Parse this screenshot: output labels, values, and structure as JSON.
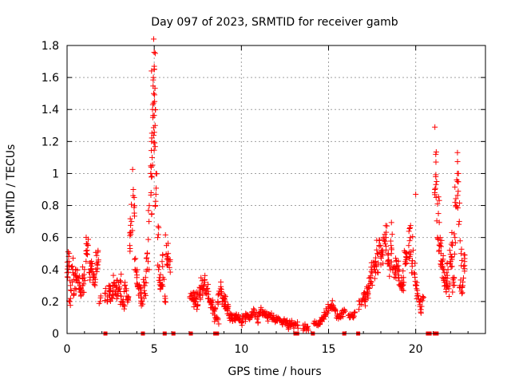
{
  "chart_data": {
    "type": "scatter",
    "title": "Day 097 of 2023, SRMTID for receiver gamb",
    "xlabel": "GPS time / hours",
    "ylabel": "SRMTID / TECUs",
    "xlim": [
      0,
      24
    ],
    "ylim": [
      0,
      1.8
    ],
    "xticks": [
      0,
      5,
      10,
      15,
      20
    ],
    "xtick_labels": [
      "0",
      "5",
      "10",
      "15",
      "20"
    ],
    "yticks": [
      0,
      0.2,
      0.4,
      0.6,
      0.8,
      1,
      1.2,
      1.4,
      1.6,
      1.8
    ],
    "ytick_labels": [
      "0",
      "0.2",
      "0.4",
      "0.6",
      "0.8",
      "1",
      "1.2",
      "1.4",
      "1.6",
      "1.8"
    ],
    "grid": true,
    "marker": "plus",
    "color": "#ff0000",
    "series": [
      {
        "name": "SRMTID",
        "x": [
          0.0,
          0.1,
          0.2,
          0.3,
          0.4,
          0.5,
          0.6,
          0.7,
          0.8,
          0.9,
          1.0,
          1.1,
          1.2,
          1.3,
          1.4,
          1.5,
          1.6,
          1.7,
          1.8,
          1.9,
          2.2,
          2.3,
          2.4,
          2.5,
          2.6,
          2.7,
          2.8,
          2.9,
          3.0,
          3.1,
          3.2,
          3.3,
          3.4,
          3.5,
          3.6,
          3.7,
          3.8,
          3.9,
          4.0,
          4.1,
          4.2,
          4.3,
          4.4,
          4.5,
          4.6,
          4.7,
          4.8,
          4.85,
          4.9,
          4.95,
          5.0,
          5.05,
          5.1,
          5.2,
          5.3,
          5.4,
          5.5,
          5.6,
          5.7,
          5.8,
          5.9,
          7.1,
          7.2,
          7.3,
          7.4,
          7.5,
          7.6,
          7.7,
          7.8,
          7.9,
          8.0,
          8.1,
          8.2,
          8.3,
          8.4,
          8.5,
          8.6,
          8.7,
          8.8,
          8.9,
          9.0,
          9.1,
          9.2,
          9.3,
          9.4,
          9.5,
          9.6,
          9.7,
          9.8,
          9.9,
          10.0,
          10.1,
          10.2,
          10.3,
          10.4,
          10.5,
          10.6,
          10.7,
          10.8,
          10.9,
          11.0,
          11.1,
          11.2,
          11.3,
          11.4,
          11.5,
          11.6,
          11.7,
          11.8,
          11.9,
          12.0,
          12.1,
          12.2,
          12.3,
          12.4,
          12.5,
          12.6,
          12.7,
          12.8,
          12.9,
          13.0,
          13.1,
          13.2,
          13.6,
          13.7,
          13.8,
          14.2,
          14.3,
          14.4,
          14.5,
          14.6,
          14.7,
          14.8,
          14.9,
          15.0,
          15.1,
          15.2,
          15.3,
          15.4,
          15.5,
          15.6,
          15.7,
          15.8,
          15.9,
          16.2,
          16.3,
          16.4,
          16.5,
          16.8,
          16.9,
          17.0,
          17.1,
          17.2,
          17.3,
          17.4,
          17.5,
          17.6,
          17.7,
          17.8,
          17.9,
          18.0,
          18.1,
          18.2,
          18.3,
          18.4,
          18.5,
          18.6,
          18.7,
          18.8,
          18.9,
          19.0,
          19.1,
          19.2,
          19.3,
          19.4,
          19.5,
          19.6,
          19.7,
          19.8,
          19.9,
          20.0,
          20.1,
          20.2,
          20.3,
          20.4,
          21.1,
          21.2,
          21.3,
          21.4,
          21.5,
          21.6,
          21.7,
          21.8,
          21.9,
          22.0,
          22.1,
          22.2,
          22.3,
          22.4,
          22.5,
          22.6,
          22.7,
          22.8,
          0.05,
          0.15,
          0.35,
          0.55,
          0.75,
          0.95,
          1.15,
          1.35,
          1.55,
          1.75,
          2.45,
          2.65,
          2.85,
          3.05,
          3.25,
          3.45,
          3.65,
          3.85,
          4.05,
          4.25,
          4.45,
          4.65,
          4.82,
          4.88,
          4.92,
          4.97,
          5.02,
          5.07,
          5.25,
          5.35,
          5.45,
          5.75,
          7.25,
          7.45,
          7.65,
          7.85,
          8.05,
          8.25,
          8.45,
          8.65,
          8.85,
          9.05,
          9.25,
          9.45,
          9.65,
          17.05,
          17.25,
          17.45,
          17.65,
          17.85,
          18.05,
          18.25,
          18.45,
          18.65,
          18.85,
          19.05,
          19.25,
          19.45,
          19.65,
          19.85,
          20.05,
          20.25,
          21.15,
          21.25,
          21.35,
          21.45,
          21.55,
          21.65,
          21.75,
          21.85,
          21.95,
          22.05,
          22.15,
          22.25,
          22.35,
          22.45,
          22.55,
          22.65,
          22.75
        ],
        "y": [
          0.38,
          0.45,
          0.3,
          0.42,
          0.25,
          0.4,
          0.35,
          0.32,
          0.28,
          0.36,
          0.4,
          0.5,
          0.55,
          0.38,
          0.42,
          0.35,
          0.3,
          0.44,
          0.46,
          0.2,
          0.25,
          0.2,
          0.3,
          0.28,
          0.22,
          0.32,
          0.3,
          0.25,
          0.28,
          0.2,
          0.18,
          0.3,
          0.28,
          0.22,
          0.55,
          0.7,
          0.9,
          0.4,
          0.35,
          0.28,
          0.25,
          0.2,
          0.3,
          0.35,
          0.5,
          0.7,
          1.0,
          1.2,
          1.4,
          1.6,
          1.65,
          1.3,
          1.0,
          0.6,
          0.35,
          0.3,
          0.35,
          0.2,
          0.55,
          0.5,
          0.45,
          0.25,
          0.22,
          0.24,
          0.2,
          0.18,
          0.25,
          0.3,
          0.28,
          0.32,
          0.25,
          0.22,
          0.2,
          0.18,
          0.15,
          0.1,
          0.1,
          0.25,
          0.28,
          0.22,
          0.2,
          0.18,
          0.15,
          0.12,
          0.1,
          0.08,
          0.1,
          0.12,
          0.1,
          0.08,
          0.07,
          0.09,
          0.1,
          0.12,
          0.11,
          0.1,
          0.12,
          0.13,
          0.11,
          0.09,
          0.12,
          0.14,
          0.12,
          0.13,
          0.11,
          0.1,
          0.12,
          0.11,
          0.1,
          0.09,
          0.08,
          0.1,
          0.09,
          0.07,
          0.08,
          0.06,
          0.07,
          0.05,
          0.06,
          0.07,
          0.05,
          0.06,
          0.05,
          0.03,
          0.04,
          0.03,
          0.06,
          0.07,
          0.05,
          0.08,
          0.1,
          0.09,
          0.12,
          0.14,
          0.16,
          0.17,
          0.18,
          0.16,
          0.14,
          0.12,
          0.11,
          0.1,
          0.13,
          0.15,
          0.1,
          0.12,
          0.11,
          0.13,
          0.18,
          0.2,
          0.22,
          0.25,
          0.28,
          0.3,
          0.35,
          0.38,
          0.4,
          0.45,
          0.5,
          0.55,
          0.48,
          0.52,
          0.58,
          0.6,
          0.45,
          0.42,
          0.5,
          0.4,
          0.38,
          0.42,
          0.35,
          0.3,
          0.28,
          0.35,
          0.45,
          0.5,
          0.55,
          0.6,
          0.42,
          0.38,
          0.3,
          0.25,
          0.2,
          0.15,
          0.22,
          0.9,
          0.95,
          0.75,
          0.6,
          0.45,
          0.4,
          0.35,
          0.3,
          0.28,
          0.45,
          0.55,
          0.35,
          0.8,
          0.95,
          0.7,
          0.5,
          0.3,
          0.45,
          0.42,
          0.2,
          0.38,
          0.33,
          0.26,
          0.31,
          0.52,
          0.4,
          0.36,
          0.43,
          0.24,
          0.27,
          0.29,
          0.33,
          0.18,
          0.21,
          0.62,
          0.85,
          0.3,
          0.22,
          0.25,
          0.45,
          0.88,
          1.1,
          1.35,
          1.5,
          1.45,
          0.8,
          0.4,
          0.28,
          0.45,
          0.48,
          0.2,
          0.23,
          0.26,
          0.3,
          0.28,
          0.19,
          0.14,
          0.2,
          0.26,
          0.21,
          0.17,
          0.11,
          0.09,
          0.21,
          0.26,
          0.32,
          0.4,
          0.44,
          0.52,
          0.56,
          0.46,
          0.62,
          0.47,
          0.4,
          0.32,
          0.48,
          0.58,
          0.52,
          0.28,
          0.18,
          0.98,
          0.6,
          0.52,
          0.5,
          0.42,
          0.32,
          0.3,
          0.4,
          0.52,
          0.48,
          0.3,
          0.6,
          0.96,
          1.0,
          0.3,
          0.25,
          0.42
        ],
        "outliers": [
          {
            "x": 21.1,
            "y": 1.29
          },
          {
            "x": 21.15,
            "y": 1.12
          },
          {
            "x": 20.0,
            "y": 0.87
          },
          {
            "x": 8.7,
            "y": 0.06
          },
          {
            "x": 5.0,
            "y": 1.67
          }
        ]
      }
    ],
    "data_gaps": {
      "y": 0,
      "x": [
        2.2,
        4.35,
        5.6,
        6.1,
        7.1,
        8.5,
        8.6,
        13.1,
        13.2,
        14.1,
        15.9,
        16.7,
        20.7,
        20.8,
        21.1,
        21.2
      ]
    }
  }
}
